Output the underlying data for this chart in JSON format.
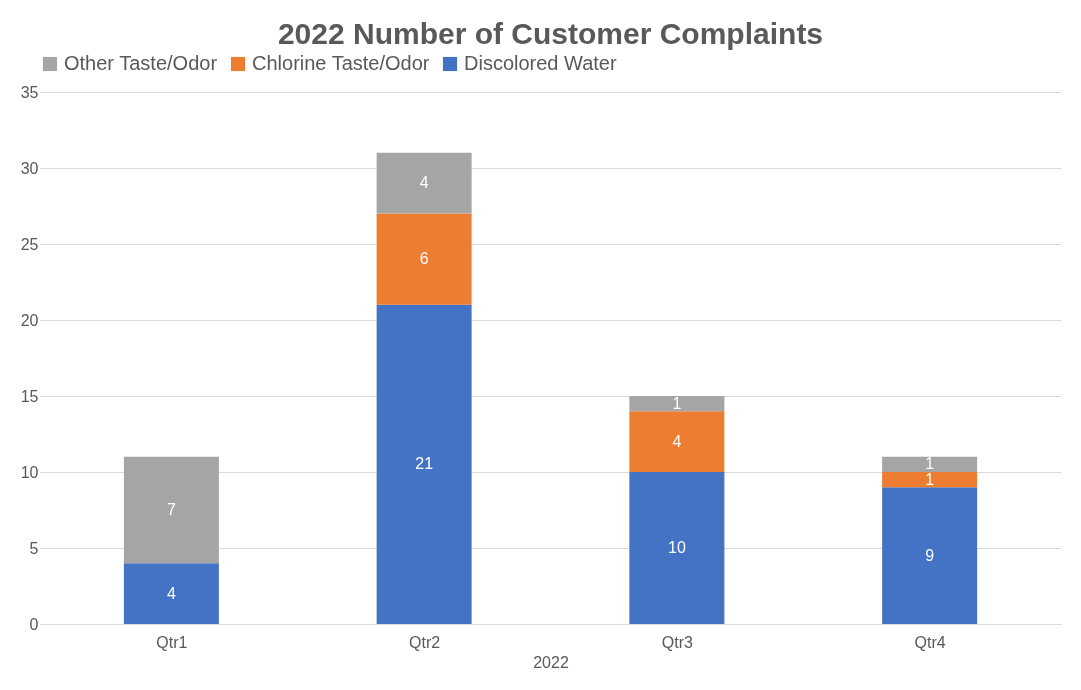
{
  "chart_data": {
    "type": "bar",
    "title": "2022 Number of Customer Complaints",
    "xlabel": "2022",
    "categories": [
      "Qtr1",
      "Qtr2",
      "Qtr3",
      "Qtr4"
    ],
    "stacked": true,
    "series": [
      {
        "name": "Discolored Water",
        "color": "#4472c4",
        "values": [
          4,
          21,
          10,
          9
        ]
      },
      {
        "name": "Chlorine Taste/Odor",
        "color": "#ed7d31",
        "values": [
          null,
          6,
          4,
          1
        ]
      },
      {
        "name": "Other Taste/Odor",
        "color": "#a5a5a5",
        "values": [
          7,
          4,
          1,
          1
        ]
      }
    ],
    "ylim": [
      0,
      35
    ],
    "yticks": [
      0,
      5,
      10,
      15,
      20,
      25,
      30,
      35
    ],
    "grid": "y",
    "legend": "top",
    "data_labels": true
  }
}
